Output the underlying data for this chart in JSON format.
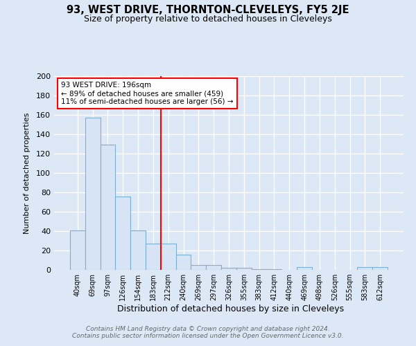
{
  "title": "93, WEST DRIVE, THORNTON-CLEVELEYS, FY5 2JE",
  "subtitle": "Size of property relative to detached houses in Cleveleys",
  "xlabel": "Distribution of detached houses by size in Cleveleys",
  "ylabel": "Number of detached properties",
  "bar_labels": [
    "40sqm",
    "69sqm",
    "97sqm",
    "126sqm",
    "154sqm",
    "183sqm",
    "212sqm",
    "240sqm",
    "269sqm",
    "297sqm",
    "326sqm",
    "355sqm",
    "383sqm",
    "412sqm",
    "440sqm",
    "469sqm",
    "498sqm",
    "526sqm",
    "555sqm",
    "583sqm",
    "612sqm"
  ],
  "bar_values": [
    41,
    157,
    129,
    76,
    41,
    27,
    27,
    16,
    5,
    5,
    2,
    2,
    1,
    1,
    0,
    3,
    0,
    0,
    0,
    3,
    3
  ],
  "bar_color": "#d6e4f5",
  "bar_edge_color": "#7bafd4",
  "annotation_text": "93 WEST DRIVE: 196sqm\n← 89% of detached houses are smaller (459)\n11% of semi-detached houses are larger (56) →",
  "vline_x": 5.5,
  "vline_color": "red",
  "annotation_box_color": "white",
  "annotation_box_edge_color": "red",
  "footer": "Contains HM Land Registry data © Crown copyright and database right 2024.\nContains public sector information licensed under the Open Government Licence v3.0.",
  "ylim": [
    0,
    200
  ],
  "yticks": [
    0,
    20,
    40,
    60,
    80,
    100,
    120,
    140,
    160,
    180,
    200
  ],
  "background_color": "#dce8f5",
  "plot_bg_color": "#dce8f5",
  "grid_color": "#ffffff",
  "title_fontsize": 10.5,
  "subtitle_fontsize": 9
}
